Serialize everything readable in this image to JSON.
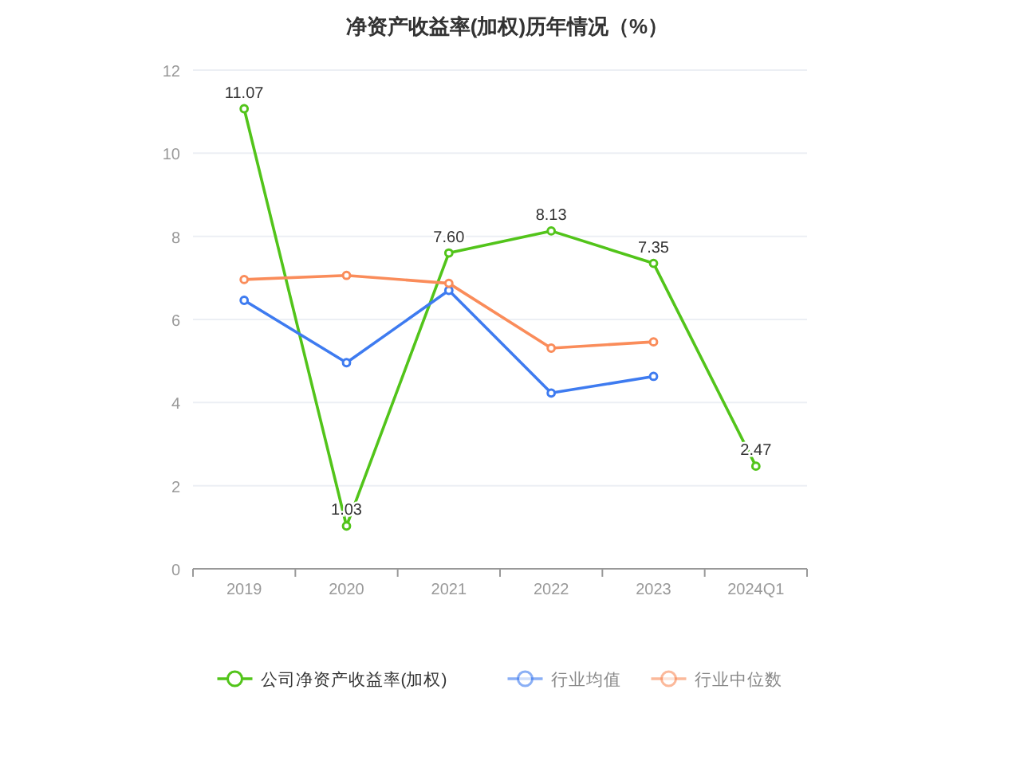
{
  "chart_data": {
    "type": "line",
    "title": "净资产收益率(加权)历年情况（%）",
    "categories": [
      "2019",
      "2020",
      "2021",
      "2022",
      "2023",
      "2024Q1"
    ],
    "series": [
      {
        "name": "公司净资产收益率(加权)",
        "color": "#52c41a",
        "values": [
          11.07,
          1.03,
          7.6,
          8.13,
          7.35,
          2.47
        ],
        "value_labels": [
          "11.07",
          "1.03",
          "7.60",
          "8.13",
          "7.35",
          "2.47"
        ]
      },
      {
        "name": "行业均值",
        "color": "#3e7bf0",
        "values": [
          6.46,
          4.96,
          6.7,
          4.23,
          4.63,
          null
        ]
      },
      {
        "name": "行业中位数",
        "color": "#fa8c5a",
        "values": [
          6.96,
          7.06,
          6.87,
          5.31,
          5.46,
          null
        ]
      }
    ],
    "ylim": [
      0,
      12
    ],
    "yticks": [
      0,
      2,
      4,
      6,
      8,
      10,
      12
    ],
    "grid": "y",
    "legend": "bottom",
    "marker": "circle",
    "line_style": "solid"
  }
}
